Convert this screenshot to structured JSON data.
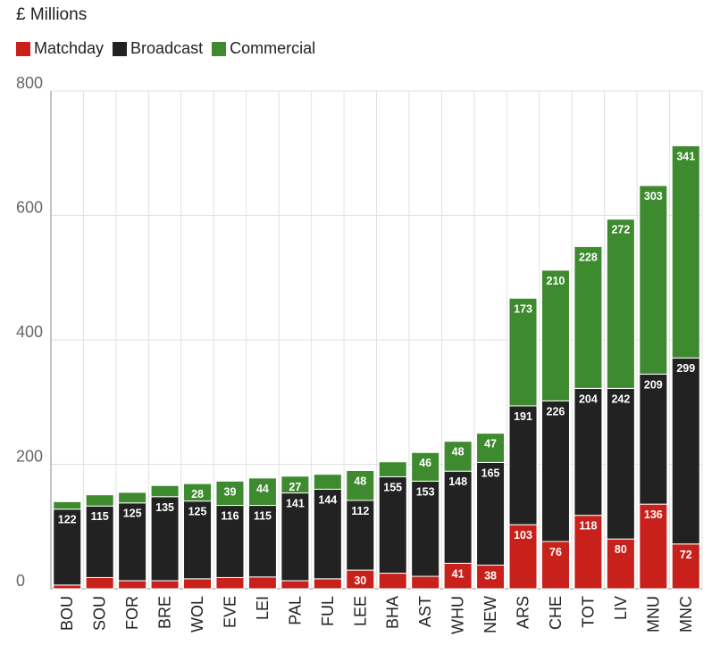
{
  "chart_data": {
    "type": "bar",
    "stacked": true,
    "unit_label": "£ Millions",
    "ylim": [
      0,
      800
    ],
    "yticks": [
      0,
      200,
      400,
      600,
      800
    ],
    "grid": true,
    "legend_position": "top-left",
    "categories": [
      "BOU",
      "SOU",
      "FOR",
      "BRE",
      "WOL",
      "EVE",
      "LEI",
      "PAL",
      "FUL",
      "LEE",
      "BHA",
      "AST",
      "WHU",
      "NEW",
      "ARS",
      "CHE",
      "TOT",
      "LIV",
      "MNU",
      "MNC"
    ],
    "series": [
      {
        "name": "Matchday",
        "color": "#c8201a",
        "values": [
          6,
          18,
          13,
          13,
          16,
          18,
          19,
          13,
          16,
          30,
          25,
          20,
          41,
          38,
          103,
          76,
          118,
          80,
          136,
          72
        ],
        "labels": [
          null,
          null,
          null,
          null,
          null,
          null,
          null,
          null,
          null,
          "30",
          null,
          null,
          "41",
          "38",
          "103",
          "76",
          "118",
          "80",
          "136",
          "72"
        ]
      },
      {
        "name": "Broadcast",
        "color": "#222222",
        "values": [
          122,
          115,
          125,
          135,
          125,
          116,
          115,
          141,
          144,
          112,
          155,
          153,
          148,
          165,
          191,
          226,
          204,
          242,
          209,
          299
        ],
        "labels": [
          "122",
          "115",
          "125",
          "135",
          "125",
          "116",
          "115",
          "141",
          "144",
          "112",
          "155",
          "153",
          "148",
          "165",
          "191",
          "226",
          "204",
          "242",
          "209",
          "299"
        ]
      },
      {
        "name": "Commercial",
        "color": "#3e8a2e",
        "values": [
          12,
          18,
          17,
          18,
          28,
          39,
          44,
          27,
          24,
          48,
          24,
          46,
          48,
          47,
          173,
          210,
          228,
          272,
          303,
          341
        ],
        "labels": [
          null,
          null,
          null,
          null,
          "28",
          "39",
          "44",
          "27",
          null,
          "48",
          null,
          "46",
          "48",
          "47",
          "173",
          "210",
          "228",
          "272",
          "303",
          "341"
        ]
      }
    ]
  }
}
